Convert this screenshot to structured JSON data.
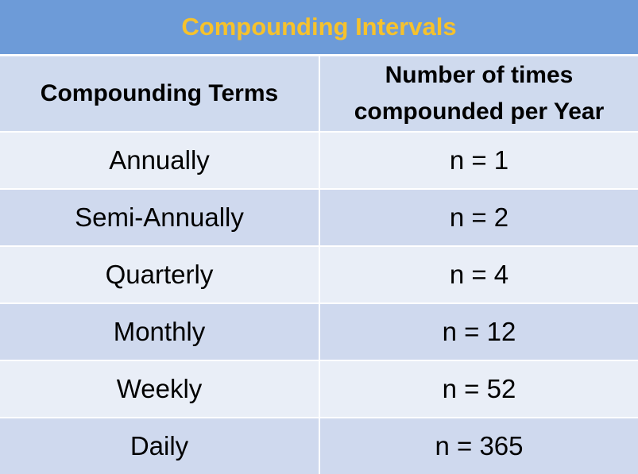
{
  "header": {
    "title": "Compounding Intervals"
  },
  "table": {
    "columns": [
      "Compounding Terms",
      "Number of times compounded per Year"
    ],
    "rows": [
      [
        "Annually",
        "n = 1"
      ],
      [
        "Semi-Annually",
        "n = 2"
      ],
      [
        "Quarterly",
        "n = 4"
      ],
      [
        "Monthly",
        "n = 12"
      ],
      [
        "Weekly",
        "n = 52"
      ],
      [
        "Daily",
        "n = 365"
      ]
    ]
  }
}
